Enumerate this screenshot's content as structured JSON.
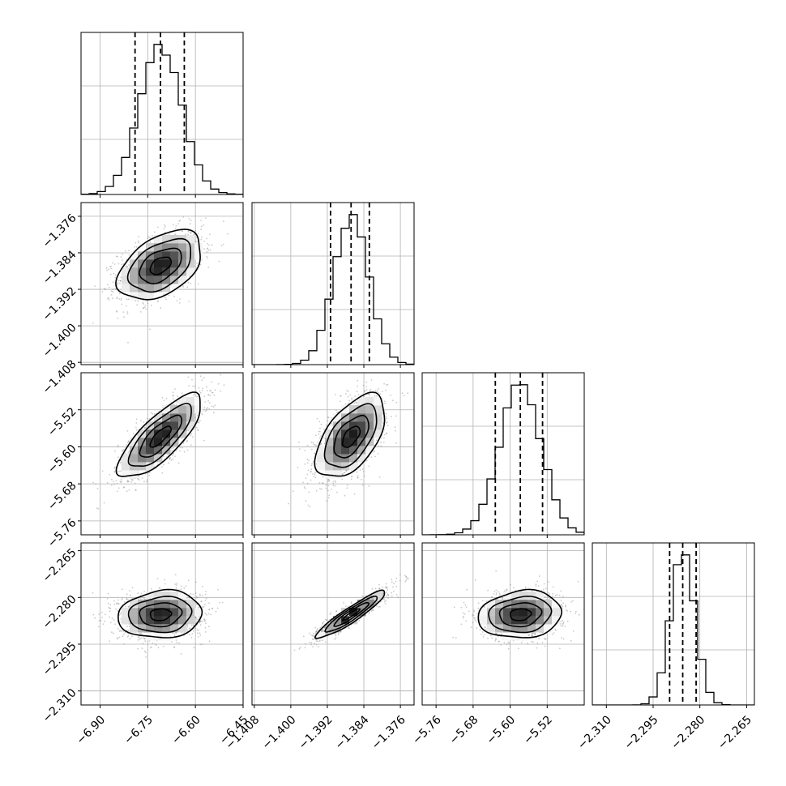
{
  "chart_data": {
    "type": "corner",
    "n_params": 4,
    "grid": true,
    "colors": {
      "line": "#000000",
      "grid": "#b0b0b0",
      "points": "#8a8a8a"
    },
    "params": [
      {
        "range": [
          -6.96,
          -6.45
        ],
        "ticks": [
          -6.9,
          -6.75,
          -6.6,
          -6.45
        ],
        "tick_labels": [
          "−6.90",
          "−6.75",
          "−6.60",
          "−6.45"
        ],
        "mean": -6.71,
        "sd": 0.066,
        "quantiles": [
          -6.79,
          -6.71,
          -6.635
        ]
      },
      {
        "range": [
          -1.4085,
          -1.373
        ],
        "ticks": [
          -1.408,
          -1.4,
          -1.392,
          -1.384,
          -1.376
        ],
        "tick_labels": [
          "−1.408",
          "−1.400",
          "−1.392",
          "−1.384",
          "−1.376"
        ],
        "mean": -1.3868,
        "sd": 0.0038,
        "quantiles": [
          -1.3913,
          -1.3868,
          -1.3828
        ]
      },
      {
        "range": [
          -5.79,
          -5.44
        ],
        "ticks": [
          -5.76,
          -5.68,
          -5.6,
          -5.52
        ],
        "tick_labels": [
          "−5.76",
          "−5.68",
          "−5.60",
          "−5.52"
        ],
        "mean": -5.578,
        "sd": 0.045,
        "quantiles": [
          -5.632,
          -5.578,
          -5.53
        ]
      },
      {
        "range": [
          -2.3145,
          -2.2625
        ],
        "ticks": [
          -2.31,
          -2.295,
          -2.28,
          -2.265
        ],
        "tick_labels": [
          "−2.310",
          "−2.295",
          "−2.280",
          "−2.265"
        ],
        "mean": -2.2855,
        "sd": 0.0038,
        "quantiles": [
          -2.2897,
          -2.2855,
          -2.2812
        ]
      }
    ],
    "correlations": {
      "1-0": 0.45,
      "2-0": 0.78,
      "2-1": 0.55,
      "3-0": 0.1,
      "3-1": 0.93,
      "3-2": 0.12
    }
  }
}
